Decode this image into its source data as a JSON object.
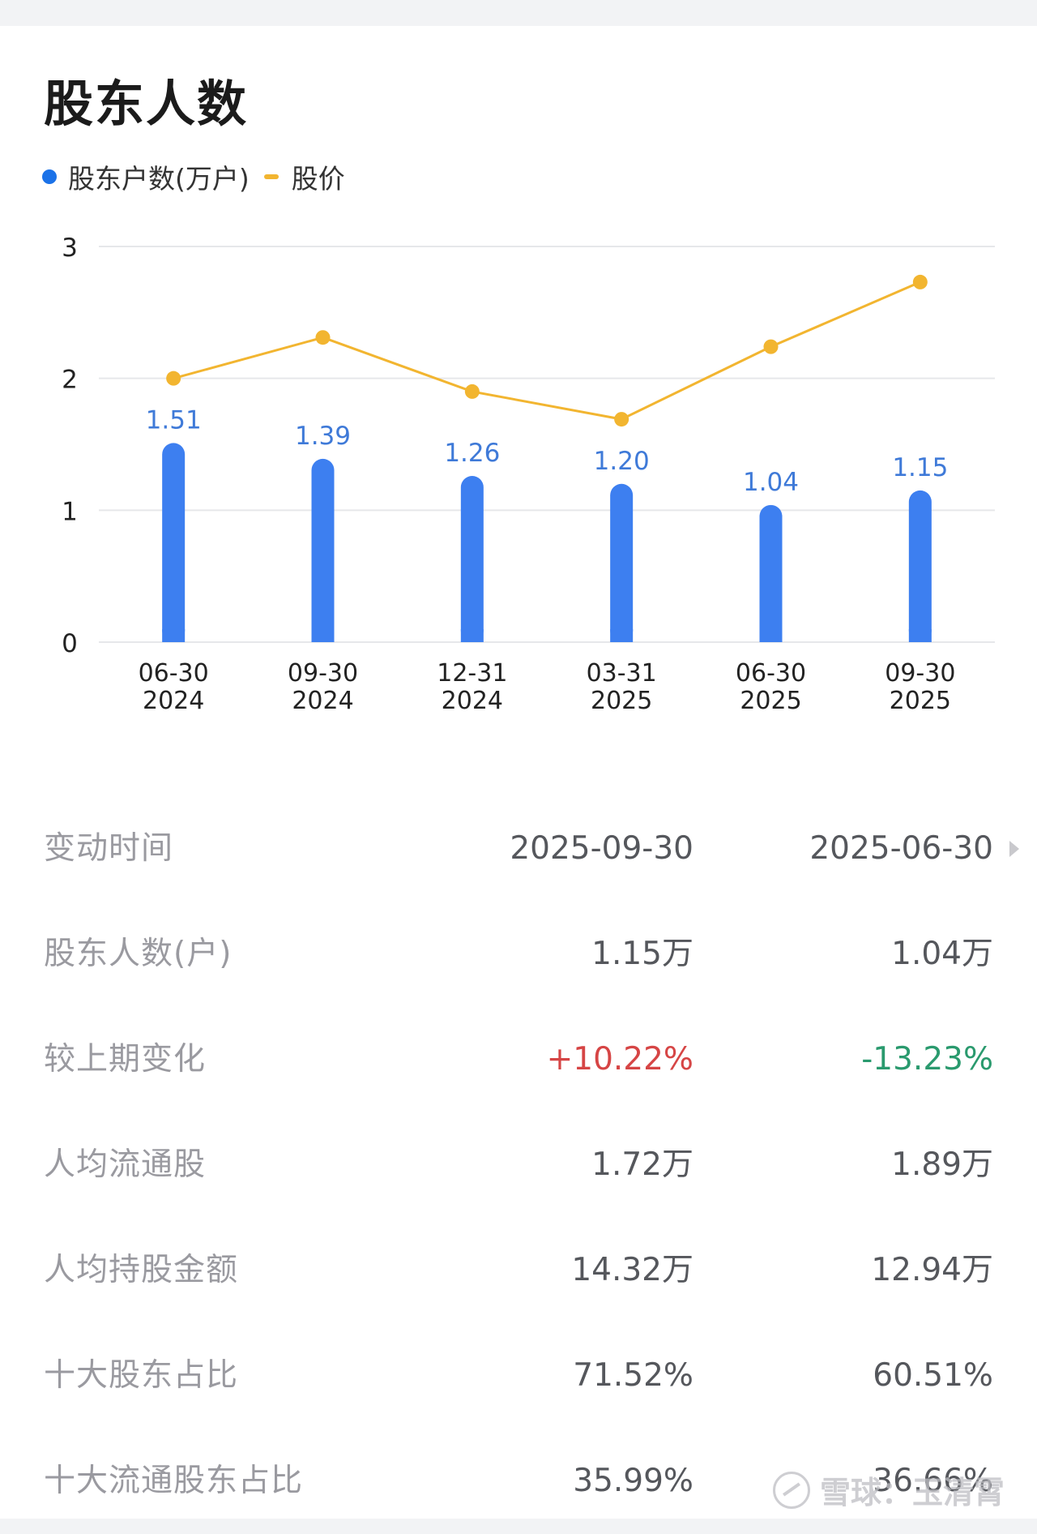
{
  "section_title": "股东人数",
  "colors": {
    "bar": "#3d7ff0",
    "line": "#f2b530",
    "grid": "#e6e7ea",
    "tick_text": "#222222",
    "bar_label": "#3f7ad8",
    "positive": "#d64545",
    "negative": "#2a9a6e"
  },
  "chart_data": {
    "type": "bar",
    "categories": [
      [
        "06-30",
        "2024"
      ],
      [
        "09-30",
        "2024"
      ],
      [
        "12-31",
        "2024"
      ],
      [
        "03-31",
        "2025"
      ],
      [
        "06-30",
        "2025"
      ],
      [
        "09-30",
        "2025"
      ]
    ],
    "series": [
      {
        "name": "股东户数(万户)",
        "type": "bar",
        "values": [
          1.51,
          1.39,
          1.26,
          1.2,
          1.04,
          1.15
        ],
        "data_labels": [
          "1.51",
          "1.39",
          "1.26",
          "1.20",
          "1.04",
          "1.15"
        ]
      },
      {
        "name": "股价",
        "type": "line",
        "values": [
          2.0,
          2.31,
          1.9,
          1.69,
          2.24,
          2.73
        ]
      }
    ],
    "yticks": [
      "0",
      "1",
      "2",
      "3"
    ],
    "ylim": [
      0,
      3
    ],
    "grid": true,
    "legend_position": "top-left"
  },
  "table": {
    "header": {
      "label": "变动时间",
      "v1": "2025-09-30",
      "v2": "2025-06-30"
    },
    "rows": [
      {
        "label": "股东人数(户)",
        "v1": "1.15万",
        "v2": "1.04万"
      },
      {
        "label": "较上期变化",
        "v1": "+10.22%",
        "v2": "-13.23%"
      },
      {
        "label": "人均流通股",
        "v1": "1.72万",
        "v2": "1.89万"
      },
      {
        "label": "人均持股金额",
        "v1": "14.32万",
        "v2": "12.94万"
      },
      {
        "label": "十大股东占比",
        "v1": "71.52%",
        "v2": "60.51%"
      },
      {
        "label": "十大流通股东占比",
        "v1": "35.99%",
        "v2": "36.66%"
      }
    ]
  },
  "watermark": {
    "icon": "snowball-logo-icon",
    "text": "雪球：玉清霄"
  }
}
